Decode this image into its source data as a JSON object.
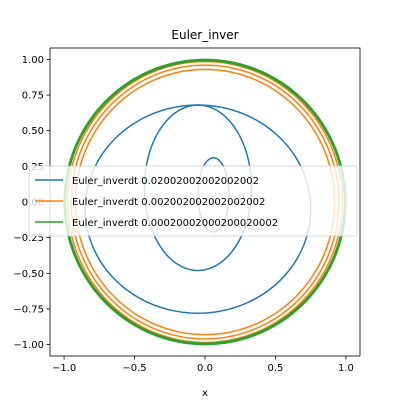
{
  "chart_data": {
    "type": "line",
    "title": "Euler_inver",
    "xlabel": "x",
    "ylabel": "",
    "xlim": [
      -1.1,
      1.1
    ],
    "ylim": [
      -1.08,
      1.08
    ],
    "x_ticks": [
      -1.0,
      -0.5,
      0.0,
      0.5,
      1.0
    ],
    "x_tick_labels": [
      "−1.0",
      "−0.5",
      "0.0",
      "0.5",
      "1.0"
    ],
    "y_ticks": [
      1.0,
      0.75,
      0.5,
      0.25,
      0.0,
      -0.25,
      -0.5,
      -0.75,
      -1.0
    ],
    "y_tick_labels": [
      "1.00",
      "0.75",
      "0.50",
      "0.25",
      "0.00",
      "−0.25",
      "−0.50",
      "−0.75",
      "−1.00"
    ],
    "grid": false,
    "legend_position": "center-left",
    "series": [
      {
        "name": "Euler_inverdt 0.02002002002002002",
        "color": "#1f77b4",
        "curves": [
          {
            "cx": 0.06,
            "cy": 0.05,
            "rx": 0.11,
            "ry": 0.26
          },
          {
            "cx": -0.05,
            "cy": 0.1,
            "rx": 0.38,
            "ry": 0.58
          },
          {
            "cx": -0.05,
            "cy": -0.05,
            "rx": 0.8,
            "ry": 0.73
          }
        ]
      },
      {
        "name": "Euler_inverdt 0.002002002002002002",
        "color": "#ff7f0e",
        "curves": [
          {
            "cx": 0.0,
            "cy": 0.0,
            "rx": 0.92,
            "ry": 0.93
          },
          {
            "cx": 0.0,
            "cy": 0.0,
            "rx": 0.95,
            "ry": 0.96
          },
          {
            "cx": 0.0,
            "cy": 0.0,
            "rx": 0.975,
            "ry": 0.985
          }
        ]
      },
      {
        "name": "Euler_inverdt 0.00020002000200020002",
        "color": "#2ca02c",
        "curves": [
          {
            "cx": 0.0,
            "cy": 0.0,
            "rx": 0.99,
            "ry": 0.99
          },
          {
            "cx": 0.0,
            "cy": 0.0,
            "rx": 0.995,
            "ry": 0.995
          },
          {
            "cx": 0.0,
            "cy": 0.0,
            "rx": 1.0,
            "ry": 1.0
          }
        ]
      }
    ]
  }
}
